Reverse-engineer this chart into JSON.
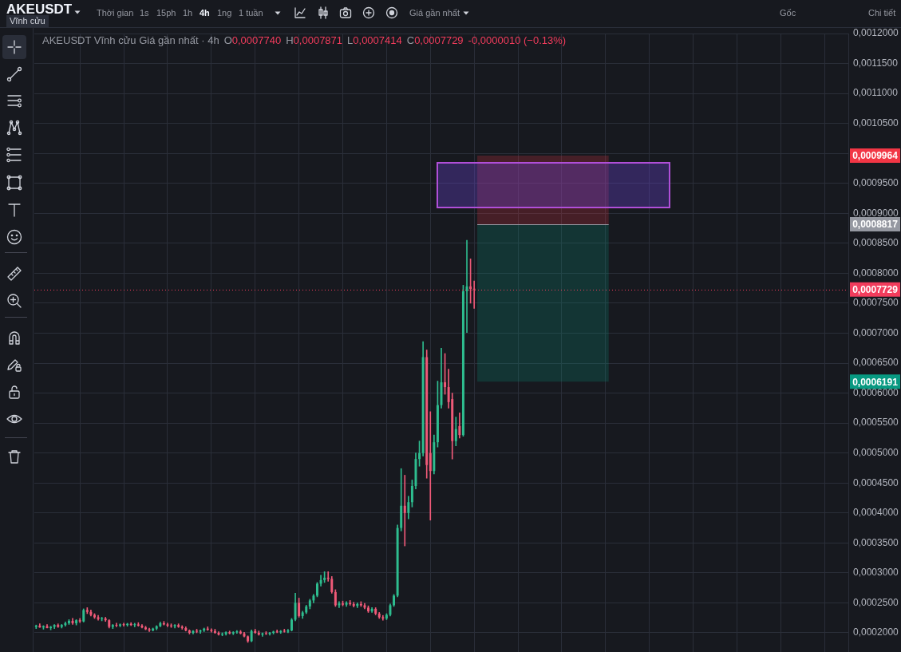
{
  "chart_data": {
    "type": "candlestick",
    "title": "AKEUSDT",
    "subtitle": "AKEUSDT Vĩnh cửu Giá gần nhất · 4h",
    "categories": [
      null,
      null,
      null,
      null,
      null,
      null,
      null,
      null,
      null,
      null,
      null,
      null,
      null,
      null,
      null,
      null,
      null,
      null,
      null,
      null,
      null,
      null,
      null,
      null,
      null,
      null,
      null,
      null,
      null,
      null,
      null,
      null,
      null,
      null,
      null,
      null,
      null,
      null,
      null,
      null,
      null,
      null,
      null,
      null,
      null,
      null,
      null,
      null,
      null,
      null,
      null,
      null,
      null,
      null,
      null,
      null,
      null,
      null,
      null,
      null,
      null,
      null,
      null,
      null,
      null,
      null,
      null,
      null,
      null,
      null,
      null,
      null,
      null,
      null,
      null,
      null,
      null,
      null,
      null,
      null,
      null,
      null,
      null,
      null,
      null,
      null,
      null,
      null,
      null,
      null,
      null,
      null,
      null,
      null,
      null,
      null,
      null,
      null,
      null,
      null,
      null,
      null,
      null,
      null,
      null,
      null,
      null,
      null,
      null,
      null,
      null,
      null,
      null,
      null,
      null,
      null,
      null,
      null,
      null,
      null,
      null,
      null,
      null,
      null,
      null,
      null,
      null,
      null,
      null,
      null,
      null,
      null,
      null,
      null,
      null,
      null,
      null,
      null,
      null,
      null,
      null,
      null,
      null,
      null,
      null,
      null,
      null,
      null,
      null,
      null,
      null,
      null,
      null,
      null,
      null,
      null,
      null,
      null,
      null,
      null,
      null,
      null,
      null,
      null,
      null,
      null,
      null,
      null,
      null,
      null,
      null,
      null,
      null,
      null,
      null,
      null,
      null,
      null,
      null,
      null,
      null,
      null,
      null,
      null,
      null,
      null,
      null,
      null,
      null,
      null,
      null,
      null,
      null,
      null,
      null,
      null,
      null,
      null,
      null,
      null,
      null,
      null,
      null,
      null,
      null,
      null,
      null,
      null,
      null,
      null,
      null,
      null,
      null,
      null,
      null,
      null,
      null,
      null,
      null,
      null,
      null,
      null,
      null
    ],
    "ohlc": [
      [
        0.00021,
        0.000213,
        0.000207,
        0.000212
      ],
      [
        0.000212,
        0.000215,
        0.000209,
        0.000209
      ],
      [
        0.000209,
        0.000212,
        0.000206,
        0.000211
      ],
      [
        0.000211,
        0.000214,
        0.000208,
        0.000208
      ],
      [
        0.000208,
        0.000211,
        0.000205,
        0.00021
      ],
      [
        0.00021,
        0.000214,
        0.000207,
        0.000213
      ],
      [
        0.000213,
        0.000215,
        0.000209,
        0.00021
      ],
      [
        0.00021,
        0.000214,
        0.000208,
        0.000213
      ],
      [
        0.000213,
        0.000218,
        0.000211,
        0.000216
      ],
      [
        0.000216,
        0.000222,
        0.000214,
        0.00022
      ],
      [
        0.00022,
        0.000224,
        0.000214,
        0.000216
      ],
      [
        0.000216,
        0.000222,
        0.000213,
        0.000221
      ],
      [
        0.000221,
        0.000224,
        0.000217,
        0.000219
      ],
      [
        0.000219,
        0.00024,
        0.000218,
        0.000238
      ],
      [
        0.000238,
        0.000242,
        0.000232,
        0.000235
      ],
      [
        0.000235,
        0.000238,
        0.000228,
        0.00023
      ],
      [
        0.00023,
        0.000232,
        0.000224,
        0.000226
      ],
      [
        0.000226,
        0.000229,
        0.000221,
        0.000223
      ],
      [
        0.000223,
        0.000226,
        0.00022,
        0.000224
      ],
      [
        0.000224,
        0.000226,
        0.000219,
        0.000221
      ],
      [
        0.000221,
        0.000222,
        0.000208,
        0.00021
      ],
      [
        0.00021,
        0.000214,
        0.000207,
        0.000213
      ],
      [
        0.000213,
        0.000216,
        0.00021,
        0.000212
      ],
      [
        0.000212,
        0.000215,
        0.00021,
        0.000214
      ],
      [
        0.000214,
        0.000216,
        0.000211,
        0.000213
      ],
      [
        0.000213,
        0.000216,
        0.000211,
        0.000215
      ],
      [
        0.000215,
        0.000217,
        0.000212,
        0.000213
      ],
      [
        0.000213,
        0.000216,
        0.00021,
        0.000214
      ],
      [
        0.000214,
        0.000217,
        0.000211,
        0.000212
      ],
      [
        0.000212,
        0.000214,
        0.000208,
        0.000209
      ],
      [
        0.000209,
        0.000211,
        0.000205,
        0.000206
      ],
      [
        0.000206,
        0.000208,
        0.000202,
        0.000204
      ],
      [
        0.000204,
        0.000208,
        0.000203,
        0.000207
      ],
      [
        0.000207,
        0.000212,
        0.000205,
        0.000211
      ],
      [
        0.000211,
        0.000218,
        0.00021,
        0.000216
      ],
      [
        0.000216,
        0.000219,
        0.000213,
        0.000214
      ],
      [
        0.000214,
        0.000216,
        0.00021,
        0.000212
      ],
      [
        0.000212,
        0.000215,
        0.000209,
        0.000211
      ],
      [
        0.000211,
        0.000214,
        0.000208,
        0.000213
      ],
      [
        0.000213,
        0.000215,
        0.000209,
        0.00021
      ],
      [
        0.00021,
        0.000212,
        0.000206,
        0.000208
      ],
      [
        0.000208,
        0.00021,
        0.000203,
        0.000204
      ],
      [
        0.000204,
        0.000205,
        0.000198,
        0.0002
      ],
      [
        0.0002,
        0.000204,
        0.000198,
        0.000203
      ],
      [
        0.000203,
        0.000206,
        0.0002,
        0.000202
      ],
      [
        0.000202,
        0.000205,
        0.000199,
        0.000204
      ],
      [
        0.000204,
        0.000208,
        0.000202,
        0.000207
      ],
      [
        0.000207,
        0.00021,
        0.000204,
        0.000205
      ],
      [
        0.000205,
        0.000207,
        0.000201,
        0.000203
      ],
      [
        0.000203,
        0.000206,
        0.000199,
        0.0002
      ],
      [
        0.0002,
        0.000202,
        0.000196,
        0.000197
      ],
      [
        0.000197,
        0.0002,
        0.000195,
        0.000198
      ],
      [
        0.000198,
        0.000202,
        0.000196,
        0.000201
      ],
      [
        0.000201,
        0.000203,
        0.000198,
        0.000199
      ],
      [
        0.000199,
        0.000202,
        0.000197,
        0.000201
      ],
      [
        0.000201,
        0.000204,
        0.000199,
        0.000202
      ],
      [
        0.000202,
        0.000204,
        0.000198,
        0.000199
      ],
      [
        0.000199,
        0.000201,
        0.000193,
        0.000194
      ],
      [
        0.000194,
        0.000195,
        0.000184,
        0.000186
      ],
      [
        0.000186,
        0.000205,
        0.000185,
        0.000203
      ],
      [
        0.000203,
        0.000206,
        0.000199,
        0.0002
      ],
      [
        0.0002,
        0.000203,
        0.000196,
        0.000197
      ],
      [
        0.000197,
        0.0002,
        0.000194,
        0.000199
      ],
      [
        0.000199,
        0.000202,
        0.000197,
        0.000198
      ],
      [
        0.000198,
        0.000201,
        0.000196,
        0.0002
      ],
      [
        0.0002,
        0.000203,
        0.000198,
        0.000202
      ],
      [
        0.000202,
        0.000205,
        0.0002,
        0.000201
      ],
      [
        0.000201,
        0.000204,
        0.000199,
        0.000203
      ],
      [
        0.000203,
        0.000206,
        0.000201,
        0.000202
      ],
      [
        0.000202,
        0.000206,
        0.0002,
        0.000204
      ],
      [
        0.000204,
        0.000224,
        0.000203,
        0.000222
      ],
      [
        0.000222,
        0.000266,
        0.00022,
        0.00025
      ],
      [
        0.00025,
        0.000258,
        0.000226,
        0.000228
      ],
      [
        0.000228,
        0.000236,
        0.000224,
        0.000234
      ],
      [
        0.000234,
        0.000246,
        0.000232,
        0.000244
      ],
      [
        0.000244,
        0.000256,
        0.00024,
        0.000254
      ],
      [
        0.000254,
        0.000264,
        0.00025,
        0.000262
      ],
      [
        0.000262,
        0.000284,
        0.00026,
        0.000282
      ],
      [
        0.000282,
        0.000296,
        0.000278,
        0.000288
      ],
      [
        0.000288,
        0.000302,
        0.000284,
        0.000292
      ],
      [
        0.000292,
        0.000302,
        0.000286,
        0.00029
      ],
      [
        0.00029,
        0.000294,
        0.000266,
        0.000268
      ],
      [
        0.000268,
        0.000272,
        0.000244,
        0.000246
      ],
      [
        0.000246,
        0.000252,
        0.000242,
        0.000249
      ],
      [
        0.000249,
        0.000253,
        0.000245,
        0.000247
      ],
      [
        0.000247,
        0.000252,
        0.000244,
        0.00025
      ],
      [
        0.00025,
        0.000254,
        0.000246,
        0.000248
      ],
      [
        0.000248,
        0.000251,
        0.000243,
        0.000245
      ],
      [
        0.000245,
        0.00025,
        0.000242,
        0.000248
      ],
      [
        0.000248,
        0.000252,
        0.000244,
        0.000246
      ],
      [
        0.000246,
        0.000249,
        0.00024,
        0.000242
      ],
      [
        0.000242,
        0.000245,
        0.000234,
        0.000236
      ],
      [
        0.000236,
        0.000242,
        0.000234,
        0.00024
      ],
      [
        0.00024,
        0.000242,
        0.00023,
        0.000232
      ],
      [
        0.000232,
        0.000234,
        0.000224,
        0.000226
      ],
      [
        0.000226,
        0.000229,
        0.000221,
        0.000224
      ],
      [
        0.000224,
        0.000232,
        0.000222,
        0.00023
      ],
      [
        0.00023,
        0.000248,
        0.000228,
        0.000246
      ],
      [
        0.000246,
        0.000264,
        0.000244,
        0.000262
      ],
      [
        0.000262,
        0.00038,
        0.00026,
        0.000375
      ],
      [
        0.000375,
        0.000474,
        0.00037,
        0.000412
      ],
      [
        0.000412,
        0.000463,
        0.000345,
        0.0004
      ],
      [
        0.0004,
        0.000428,
        0.00039,
        0.000418
      ],
      [
        0.000418,
        0.000455,
        0.00041,
        0.000445
      ],
      [
        0.000445,
        0.0005,
        0.00044,
        0.00049
      ],
      [
        0.00049,
        0.00052,
        0.000478,
        0.0005
      ],
      [
        0.0005,
        0.000686,
        0.000495,
        0.00066
      ],
      [
        0.00066,
        0.000672,
        0.000458,
        0.00048
      ],
      [
        0.0005,
        0.000569,
        0.000388,
        0.00047
      ],
      [
        0.00047,
        0.00053,
        0.000465,
        0.000518
      ],
      [
        0.000518,
        0.00062,
        0.00051,
        0.00058
      ],
      [
        0.00058,
        0.000675,
        0.000575,
        0.000618
      ],
      [
        0.000618,
        0.000666,
        0.000598,
        0.00061
      ],
      [
        0.00061,
        0.00064,
        0.000575,
        0.000585
      ],
      [
        0.00059,
        0.0006,
        0.00049,
        0.00052
      ],
      [
        0.00052,
        0.00056,
        0.000512,
        0.00054
      ],
      [
        0.000545,
        0.000567,
        0.000525,
        0.00053
      ],
      [
        0.00053,
        0.00078,
        0.000528,
        0.00077
      ],
      [
        0.00077,
        0.000855,
        0.000701,
        0.000778
      ],
      [
        0.000778,
        0.000824,
        0.00075,
        0.0007739
      ],
      [
        0.000774,
        0.0007871,
        0.0007414,
        0.0007729
      ],
      null,
      null,
      null,
      null,
      null,
      null,
      null,
      null,
      null,
      null,
      null,
      null,
      null,
      null,
      null,
      null,
      null,
      null,
      null,
      null,
      null,
      null,
      null,
      null,
      null,
      null,
      null,
      null,
      null,
      null,
      null,
      null,
      null,
      null,
      null,
      null,
      null,
      null,
      null,
      null,
      null,
      null,
      null,
      null,
      null,
      null,
      null,
      null,
      null,
      null,
      null,
      null,
      null,
      null,
      null,
      null,
      null,
      null,
      null,
      null,
      null,
      null,
      null,
      null,
      null,
      null,
      null,
      null,
      null,
      null,
      null,
      null,
      null,
      null,
      null,
      null,
      null,
      null,
      null,
      null,
      null,
      null,
      null,
      null,
      null,
      null,
      null,
      null,
      null,
      null,
      null,
      null,
      null,
      null,
      null,
      null,
      null,
      null,
      null,
      null,
      null,
      null
    ],
    "colors": [
      "#2ebd8f",
      "#ef5a78",
      "#2ebd8f",
      "#ef5a78",
      "#2ebd8f",
      "#2ebd8f",
      "#ef5a78",
      "#2ebd8f",
      "#2ebd8f",
      "#2ebd8f",
      "#ef5a78",
      "#2ebd8f",
      "#ef5a78",
      "#2ebd8f",
      "#ef5a78",
      "#ef5a78",
      "#ef5a78",
      "#ef5a78",
      "#2ebd8f",
      "#ef5a78",
      "#ef5a78",
      "#2ebd8f",
      "#ef5a78",
      "#2ebd8f",
      "#ef5a78",
      "#2ebd8f",
      "#ef5a78",
      "#2ebd8f",
      "#ef5a78",
      "#ef5a78",
      "#ef5a78",
      "#ef5a78",
      "#2ebd8f",
      "#2ebd8f",
      "#2ebd8f",
      "#ef5a78",
      "#ef5a78",
      "#ef5a78",
      "#2ebd8f",
      "#ef5a78",
      "#ef5a78",
      "#ef5a78",
      "#ef5a78",
      "#2ebd8f",
      "#ef5a78",
      "#2ebd8f",
      "#2ebd8f",
      "#ef5a78",
      "#ef5a78",
      "#ef5a78",
      "#ef5a78",
      "#2ebd8f",
      "#2ebd8f",
      "#ef5a78",
      "#2ebd8f",
      "#2ebd8f",
      "#ef5a78",
      "#ef5a78",
      "#ef5a78",
      "#2ebd8f",
      "#ef5a78",
      "#ef5a78",
      "#2ebd8f",
      "#ef5a78",
      "#2ebd8f",
      "#2ebd8f",
      "#ef5a78",
      "#2ebd8f",
      "#ef5a78",
      "#2ebd8f",
      "#2ebd8f",
      "#2ebd8f",
      "#ef5a78",
      "#2ebd8f",
      "#2ebd8f",
      "#2ebd8f",
      "#2ebd8f",
      "#2ebd8f",
      "#2ebd8f",
      "#2ebd8f",
      "#ef5a78",
      "#ef5a78",
      "#ef5a78",
      "#2ebd8f",
      "#ef5a78",
      "#2ebd8f",
      "#ef5a78",
      "#ef5a78",
      "#2ebd8f",
      "#ef5a78",
      "#ef5a78",
      "#ef5a78",
      "#2ebd8f",
      "#ef5a78",
      "#ef5a78",
      "#ef5a78",
      "#2ebd8f",
      "#2ebd8f",
      "#2ebd8f",
      "#2ebd8f",
      "#2ebd8f",
      "#ef5a78",
      "#2ebd8f",
      "#2ebd8f",
      "#2ebd8f",
      "#2ebd8f",
      "#2ebd8f",
      "#ef5a78",
      "#ef5a78",
      "#2ebd8f",
      "#2ebd8f",
      "#2ebd8f",
      "#ef5a78",
      "#ef5a78",
      "#ef5a78",
      "#2ebd8f",
      "#ef5a78",
      "#2ebd8f",
      "#2ebd8f",
      "#ef5a78",
      "#ef5a78",
      null,
      null,
      null,
      null,
      null,
      null,
      null,
      null,
      null,
      null,
      null,
      null,
      null,
      null,
      null,
      null,
      null,
      null,
      null,
      null,
      null,
      null,
      null,
      null,
      null,
      null,
      null,
      null,
      null,
      null,
      null,
      null,
      null,
      null,
      null,
      null,
      null,
      null,
      null,
      null,
      null,
      null,
      null,
      null,
      null,
      null,
      null,
      null,
      null,
      null,
      null,
      null,
      null,
      null,
      null,
      null,
      null,
      null,
      null,
      null,
      null,
      null,
      null,
      null,
      null,
      null,
      null,
      null,
      null,
      null,
      null,
      null,
      null,
      null,
      null,
      null,
      null,
      null,
      null,
      null,
      null,
      null,
      null,
      null,
      null,
      null,
      null,
      null,
      null,
      null,
      null,
      null,
      null,
      null,
      null,
      null,
      null,
      null,
      null,
      null,
      null,
      null
    ],
    "ylim": [
      0.000168,
      0.0012
    ],
    "yticks": [
      {
        "value": 0.0002,
        "label": "0,0002000"
      },
      {
        "value": 0.00025,
        "label": "0,0002500"
      },
      {
        "value": 0.0003,
        "label": "0,0003000"
      },
      {
        "value": 0.00035,
        "label": "0,0003500"
      },
      {
        "value": 0.0004,
        "label": "0,0004000"
      },
      {
        "value": 0.00045,
        "label": "0,0004500"
      },
      {
        "value": 0.0005,
        "label": "0,0005000"
      },
      {
        "value": 0.00055,
        "label": "0,0005500"
      },
      {
        "value": 0.0006,
        "label": "0,0006000"
      },
      {
        "value": 0.00065,
        "label": "0,0006500"
      },
      {
        "value": 0.0007,
        "label": "0,0007000"
      },
      {
        "value": 0.00075,
        "label": "0,0007500"
      },
      {
        "value": 0.0008,
        "label": "0,0008000"
      },
      {
        "value": 0.00085,
        "label": "0,0008500"
      },
      {
        "value": 0.0009,
        "label": "0,0009000"
      },
      {
        "value": 0.00095,
        "label": "0,0009500"
      },
      {
        "value": 0.001,
        "label": null
      },
      {
        "value": 0.00105,
        "label": "0,0010500"
      },
      {
        "value": 0.0011,
        "label": "0,0011000"
      },
      {
        "value": 0.00115,
        "label": "0,0011500"
      },
      {
        "value": 0.0012,
        "label": "0,0012000"
      }
    ],
    "grid": true,
    "tick_labels": "y",
    "bands": [
      {
        "axis": "y",
        "from": 0.0008817,
        "to": 0.0009964,
        "color": "#f23645"
      },
      {
        "axis": "y",
        "from": 0.0008817,
        "to": 0.0006191,
        "color": "#089981"
      }
    ],
    "ref_lines": [
      {
        "axis": "y",
        "value": 0.0008817,
        "color": "#9598a1"
      },
      {
        "axis": "y",
        "value": 0.0007729,
        "label": "0,0007729",
        "color": "#f23c5c",
        "line_style": "dotted"
      }
    ],
    "annotations": [
      "Vĩnh cửu",
      "Thời gian",
      "1s",
      "15ph",
      "1h",
      "4h",
      "1ng",
      "1 tuần",
      "Giá gần nhất",
      "Gốc",
      "Chi tiết",
      "O0,0007740",
      "H0,0007871",
      "L0,0007414",
      "C0,0007729",
      "-0,0000010 (−0.13%)",
      "0,0009964",
      "0,0008817",
      "0,0006191"
    ]
  }
}
